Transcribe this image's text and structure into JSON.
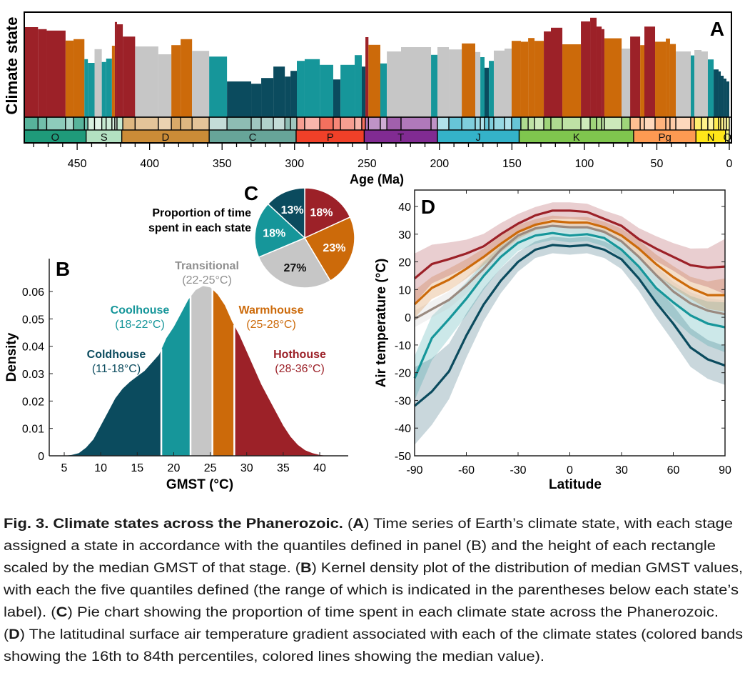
{
  "panel_labels": {
    "a": "A",
    "b": "B",
    "c": "C",
    "d": "D"
  },
  "states": {
    "D": {
      "name": "Coldhouse",
      "range": "(11-18°C)",
      "color": "#0b4b5e"
    },
    "C": {
      "name": "Coolhouse",
      "range": "(18-22°C)",
      "color": "#16969a"
    },
    "T": {
      "name": "Transitional",
      "range": "(22-25°C)",
      "color": "#c6c6c6",
      "label_color": "#8f8f8f"
    },
    "W": {
      "name": "Warmhouse",
      "range": "(25-28°C)",
      "color": "#cc6a0a"
    },
    "H": {
      "name": "Hothouse",
      "range": "(28-36°C)",
      "color": "#9c2128"
    }
  },
  "chart_data": [
    {
      "panel": "A",
      "type": "bar",
      "title": "",
      "ylabel": "Climate state",
      "xlabel": "Age (Ma)",
      "xlim": [
        486.5,
        0
      ],
      "xticks": [
        450,
        400,
        350,
        300,
        250,
        200,
        150,
        100,
        50,
        0
      ],
      "value_unit": "median GMST (°C)",
      "bars": [
        [
          486.5,
          477,
          31.5,
          "H"
        ],
        [
          477,
          471,
          30.8,
          "H"
        ],
        [
          471,
          458,
          30.3,
          "H"
        ],
        [
          458,
          452.5,
          26.8,
          "W"
        ],
        [
          452.5,
          445,
          27.3,
          "W"
        ],
        [
          445,
          442.6,
          20.3,
          "C"
        ],
        [
          442.6,
          438,
          19,
          "C"
        ],
        [
          438,
          433,
          23.8,
          "T"
        ],
        [
          433,
          430,
          19.3,
          "C"
        ],
        [
          430,
          426,
          20.5,
          "C"
        ],
        [
          426,
          424,
          25,
          "W"
        ],
        [
          424,
          422.5,
          33.3,
          "H"
        ],
        [
          422.5,
          418.5,
          32.5,
          "H"
        ],
        [
          418.5,
          410,
          28.2,
          "H"
        ],
        [
          410,
          394,
          24.75,
          "T"
        ],
        [
          394,
          385,
          22,
          "T"
        ],
        [
          385,
          378.6,
          25.2,
          "W"
        ],
        [
          378.6,
          370.7,
          27.3,
          "W"
        ],
        [
          370.7,
          358.9,
          23.2,
          "T"
        ],
        [
          358.9,
          346.6,
          21.2,
          "C"
        ],
        [
          346.6,
          329.9,
          12.5,
          "D"
        ],
        [
          329.9,
          323,
          11.7,
          "D"
        ],
        [
          323,
          314.6,
          13.7,
          "D"
        ],
        [
          314.6,
          306.7,
          17.7,
          "D"
        ],
        [
          306.7,
          302.8,
          14.2,
          "D"
        ],
        [
          302.8,
          298.4,
          16.2,
          "D"
        ],
        [
          298.4,
          293,
          19.7,
          "C"
        ],
        [
          293,
          282.6,
          20.3,
          "C"
        ],
        [
          282.6,
          273.3,
          18.3,
          "C"
        ],
        [
          273.3,
          268.3,
          13.2,
          "D"
        ],
        [
          268.3,
          258.5,
          18.3,
          "C"
        ],
        [
          258.5,
          253.6,
          21.7,
          "C"
        ],
        [
          253.6,
          251.1,
          17.7,
          "D"
        ],
        [
          251.1,
          249,
          28,
          "H"
        ],
        [
          249,
          240.8,
          25.3,
          "W"
        ],
        [
          240.8,
          236.3,
          18.8,
          "C"
        ],
        [
          236.3,
          226.5,
          23,
          "T"
        ],
        [
          226.5,
          205.8,
          24.5,
          "T"
        ],
        [
          205.8,
          201.4,
          21.8,
          "C"
        ],
        [
          201.4,
          193.5,
          24.5,
          "T"
        ],
        [
          193.5,
          184.6,
          23.7,
          "T"
        ],
        [
          184.6,
          175.3,
          25.8,
          "W"
        ],
        [
          175.3,
          171.8,
          22.8,
          "T"
        ],
        [
          171.8,
          168.9,
          21,
          "C"
        ],
        [
          168.9,
          165.9,
          17.3,
          "D"
        ],
        [
          165.9,
          162.5,
          19.7,
          "C"
        ],
        [
          162.5,
          155.1,
          23.3,
          "T"
        ],
        [
          155.1,
          150.2,
          24,
          "T"
        ],
        [
          150.2,
          143.8,
          26.7,
          "W"
        ],
        [
          143.8,
          138.8,
          26.4,
          "W"
        ],
        [
          138.8,
          134.4,
          27.7,
          "W"
        ],
        [
          134.4,
          128,
          26.7,
          "W"
        ],
        [
          128,
          123.1,
          30,
          "H"
        ],
        [
          123.1,
          115.2,
          31.3,
          "H"
        ],
        [
          115.2,
          102.4,
          25.5,
          "W"
        ],
        [
          102.4,
          96,
          33.5,
          "H"
        ],
        [
          96,
          91.6,
          34.8,
          "H"
        ],
        [
          91.6,
          88.1,
          31.7,
          "H"
        ],
        [
          88.1,
          86.2,
          30.8,
          "H"
        ],
        [
          86.2,
          74.3,
          27.6,
          "W"
        ],
        [
          74.3,
          68.4,
          24,
          "T"
        ],
        [
          68.4,
          61.5,
          28.2,
          "H"
        ],
        [
          61.5,
          58.6,
          25.2,
          "W"
        ],
        [
          58.6,
          51.2,
          31.7,
          "H"
        ],
        [
          51.2,
          43.8,
          26.4,
          "W"
        ],
        [
          43.8,
          40.9,
          27.5,
          "W"
        ],
        [
          40.9,
          36.9,
          25.6,
          "W"
        ],
        [
          36.9,
          26.6,
          23,
          "T"
        ],
        [
          26.6,
          24.1,
          21.6,
          "C"
        ],
        [
          24.1,
          19.2,
          23.5,
          "T"
        ],
        [
          19.2,
          14.8,
          23,
          "T"
        ],
        [
          14.8,
          10.8,
          20.2,
          "C"
        ],
        [
          10.8,
          7.4,
          16.7,
          "D"
        ],
        [
          7.4,
          5.9,
          16,
          "D"
        ],
        [
          5.9,
          3.9,
          14.5,
          "D"
        ],
        [
          3.9,
          2,
          13.5,
          "D"
        ],
        [
          2,
          0,
          12.5,
          "D"
        ]
      ],
      "periods": [
        {
          "label": "O",
          "start": 486.5,
          "end": 443.8,
          "color": "#1f9a7a"
        },
        {
          "label": "S",
          "start": 443.8,
          "end": 419.2,
          "color": "#b3e1c2"
        },
        {
          "label": "D",
          "start": 419.2,
          "end": 358.9,
          "color": "#cb8c37"
        },
        {
          "label": "C",
          "start": 358.9,
          "end": 298.9,
          "color": "#67a599"
        },
        {
          "label": "P",
          "start": 298.9,
          "end": 251.9,
          "color": "#f04028"
        },
        {
          "label": "T",
          "start": 251.9,
          "end": 201.4,
          "color": "#812b92"
        },
        {
          "label": "J",
          "start": 201.4,
          "end": 145,
          "color": "#34b2c9"
        },
        {
          "label": "K",
          "start": 145,
          "end": 66,
          "color": "#7fc64e"
        },
        {
          "label": "Pg",
          "start": 66,
          "end": 23,
          "color": "#fd9a52"
        },
        {
          "label": "N",
          "start": 23,
          "end": 2.6,
          "color": "#ffe619"
        },
        {
          "label": "Q",
          "start": 2.6,
          "end": 0,
          "color": "#f9f97f"
        }
      ]
    },
    {
      "panel": "B",
      "type": "area",
      "title": "",
      "xlabel": "GMST (°C)",
      "ylabel": "Density",
      "xlim": [
        2.9,
        43.9
      ],
      "ylim": [
        0,
        0.072
      ],
      "xticks": [
        5,
        10,
        15,
        20,
        25,
        30,
        35,
        40
      ],
      "yticks": [
        0,
        0.01,
        0.02,
        0.03,
        0.04,
        0.05,
        0.06
      ],
      "ytick_labels": [
        "0",
        "0.01",
        "0.02",
        "0.03",
        "0.04",
        "0.05",
        "0.06"
      ],
      "x": [
        5,
        6,
        7,
        8,
        9,
        10,
        11,
        12,
        13,
        14,
        15,
        16,
        17,
        18,
        19,
        20,
        21,
        22,
        23,
        24,
        25,
        26,
        27,
        28,
        29,
        30,
        31,
        32,
        33,
        34,
        35,
        36,
        37,
        38,
        39,
        40,
        41
      ],
      "density": [
        0,
        0.0003,
        0.001,
        0.003,
        0.006,
        0.011,
        0.016,
        0.021,
        0.0245,
        0.027,
        0.029,
        0.031,
        0.034,
        0.037,
        0.043,
        0.047,
        0.052,
        0.057,
        0.0605,
        0.062,
        0.0615,
        0.059,
        0.055,
        0.049,
        0.044,
        0.038,
        0.032,
        0.026,
        0.021,
        0.016,
        0.011,
        0.007,
        0.004,
        0.002,
        0.001,
        0.0003,
        0
      ],
      "quantile_bounds": [
        18.3,
        22.3,
        25.3,
        28.3
      ],
      "segments": [
        "D",
        "C",
        "T",
        "W",
        "H"
      ]
    },
    {
      "panel": "C",
      "type": "pie",
      "title": "Proportion of time spent in each state",
      "title_lines": [
        "Proportion of time",
        "spent in each state"
      ],
      "slices": [
        {
          "state": "H",
          "value": 18,
          "label": "18%"
        },
        {
          "state": "W",
          "value": 23,
          "label": "23%"
        },
        {
          "state": "T",
          "value": 27,
          "label": "27%"
        },
        {
          "state": "C",
          "value": 18,
          "label": "18%"
        },
        {
          "state": "D",
          "value": 13,
          "label": "13%"
        }
      ]
    },
    {
      "panel": "D",
      "type": "line",
      "xlabel": "Latitude",
      "ylabel": "Air temperature (°C)",
      "xlim": [
        -90,
        90
      ],
      "ylim": [
        -50,
        45.9
      ],
      "xticks": [
        -90,
        -60,
        -30,
        0,
        30,
        60,
        90
      ],
      "yticks": [
        -50,
        -40,
        -30,
        -20,
        -10,
        0,
        10,
        20,
        30,
        40
      ],
      "latitude": [
        -90,
        -80,
        -70,
        -60,
        -50,
        -40,
        -30,
        -20,
        -10,
        0,
        10,
        20,
        30,
        40,
        50,
        60,
        70,
        80,
        90
      ],
      "series": [
        {
          "state": "D",
          "median": [
            -32,
            -26.8,
            -19.5,
            -6.6,
            4.6,
            13.2,
            20,
            24.4,
            26.1,
            25.6,
            26.1,
            24.4,
            20.9,
            14,
            5.4,
            -2.3,
            -10.9,
            -15.2,
            -17.4
          ],
          "spread": [
            14,
            12,
            10,
            8,
            6,
            4.5,
            3.5,
            3,
            3,
            3,
            3,
            3,
            3.5,
            4.5,
            5.5,
            6.5,
            7,
            7,
            7
          ]
        },
        {
          "state": "C",
          "median": [
            -22,
            -7.5,
            -0.6,
            6.7,
            14.9,
            21.8,
            26.9,
            29.5,
            30.4,
            29.5,
            30,
            28.6,
            24.4,
            18.3,
            10.6,
            5.4,
            0.7,
            -2.3,
            -3.6
          ],
          "spread": [
            8,
            8,
            7,
            6,
            5,
            4,
            3,
            3,
            2.5,
            2.5,
            2.5,
            3,
            3,
            4,
            5,
            6,
            7,
            8,
            9
          ]
        },
        {
          "state": "T",
          "median": [
            -0.6,
            2.9,
            6.3,
            11.5,
            17.5,
            24.4,
            29.5,
            32.1,
            33,
            32.5,
            32.5,
            30.8,
            27.4,
            21.8,
            15.3,
            9.3,
            5,
            2.4,
            1.1
          ],
          "spread": [
            3,
            3,
            3,
            3,
            3,
            2.5,
            2,
            2,
            2,
            2,
            2,
            2,
            2.5,
            3,
            3,
            3.5,
            4,
            4.5,
            5
          ]
        },
        {
          "state": "W",
          "median": [
            4.7,
            10.6,
            13.6,
            17.5,
            21.8,
            26.5,
            30.8,
            33.4,
            34.7,
            34.2,
            34.2,
            32.5,
            29.5,
            24.8,
            19.2,
            14.5,
            10.6,
            8,
            8
          ],
          "spread": [
            5,
            4,
            4,
            3.5,
            3,
            3,
            2.5,
            2,
            2,
            2,
            2,
            2,
            2.5,
            3,
            3.5,
            4,
            4,
            5,
            6
          ]
        },
        {
          "state": "H",
          "median": [
            14,
            19.2,
            21,
            23,
            25.6,
            30,
            33.8,
            36.8,
            38.5,
            38.5,
            38,
            35.5,
            33,
            28.2,
            24.8,
            21.8,
            18.8,
            17.9,
            18.3
          ],
          "spread": [
            9,
            7,
            6,
            5,
            4.5,
            4,
            3.5,
            3,
            3,
            3,
            3,
            3,
            3.5,
            4,
            4.5,
            5,
            6,
            7,
            10
          ]
        }
      ]
    }
  ],
  "caption": {
    "lines": [
      [
        {
          "t": "Fig. 3. Climate states across the Phanerozoic.",
          "b": true
        },
        {
          "t": " (",
          "b": false
        },
        {
          "t": "A",
          "b": true
        },
        {
          "t": ") Time series of Earth’s climate state, with each stage",
          "b": false
        }
      ],
      [
        {
          "t": "assigned a state in accordance with the quantiles defined in panel (B) and the height of each rectangle",
          "b": false
        }
      ],
      [
        {
          "t": "scaled by the median GMST of that stage. (",
          "b": false
        },
        {
          "t": "B",
          "b": true
        },
        {
          "t": ") Kernel density plot of the distribution of median GMST values,",
          "b": false
        }
      ],
      [
        {
          "t": "with each the five quantiles defined (the range of which is indicated in the parentheses below each state’s",
          "b": false
        }
      ],
      [
        {
          "t": "label). (",
          "b": false
        },
        {
          "t": "C",
          "b": true
        },
        {
          "t": ") Pie chart showing the proportion of time spent in each climate state across the Phanerozoic.",
          "b": false
        }
      ],
      [
        {
          "t": "(",
          "b": false
        },
        {
          "t": "D",
          "b": true
        },
        {
          "t": ") The latitudinal surface air temperature gradient associated with each of the climate states (colored bands",
          "b": false
        }
      ],
      [
        {
          "t": "showing the 16th to 84th percentiles, colored lines showing the median value).",
          "b": false
        }
      ]
    ]
  }
}
